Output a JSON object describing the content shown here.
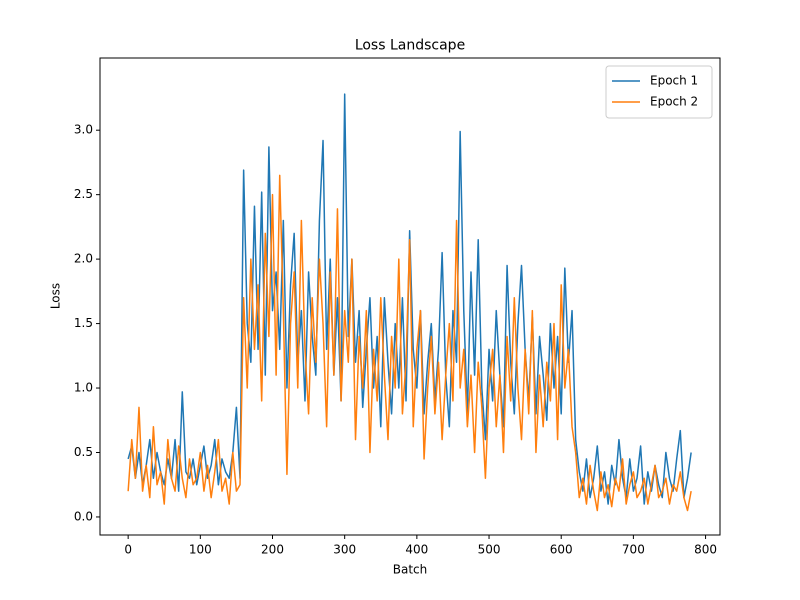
{
  "chart_data": {
    "type": "line",
    "title": "Loss Landscape",
    "x_label": "Batch",
    "y_label": "Loss",
    "x": [
      0,
      5,
      10,
      15,
      20,
      25,
      30,
      35,
      40,
      45,
      50,
      55,
      60,
      65,
      70,
      75,
      80,
      85,
      90,
      95,
      100,
      105,
      110,
      115,
      120,
      125,
      130,
      135,
      140,
      145,
      150,
      155,
      160,
      165,
      170,
      175,
      180,
      185,
      190,
      195,
      200,
      205,
      210,
      215,
      220,
      225,
      230,
      235,
      240,
      245,
      250,
      255,
      260,
      265,
      270,
      275,
      280,
      285,
      290,
      295,
      300,
      305,
      310,
      315,
      320,
      325,
      330,
      335,
      340,
      345,
      350,
      355,
      360,
      365,
      370,
      375,
      380,
      385,
      390,
      395,
      400,
      405,
      410,
      415,
      420,
      425,
      430,
      435,
      440,
      445,
      450,
      455,
      460,
      465,
      470,
      475,
      480,
      485,
      490,
      495,
      500,
      505,
      510,
      515,
      520,
      525,
      530,
      535,
      540,
      545,
      550,
      555,
      560,
      565,
      570,
      575,
      580,
      585,
      590,
      595,
      600,
      605,
      610,
      615,
      620,
      625,
      630,
      635,
      640,
      645,
      650,
      655,
      660,
      665,
      670,
      675,
      680,
      685,
      690,
      695,
      700,
      705,
      710,
      715,
      720,
      725,
      730,
      735,
      740,
      745,
      750,
      755,
      760,
      765,
      770,
      775,
      780
    ],
    "series": [
      {
        "name": "Epoch 1",
        "color": "#1f77b4",
        "values": [
          0.45,
          0.55,
          0.3,
          0.5,
          0.25,
          0.4,
          0.6,
          0.3,
          0.5,
          0.35,
          0.25,
          0.45,
          0.3,
          0.6,
          0.2,
          0.97,
          0.35,
          0.3,
          0.45,
          0.25,
          0.4,
          0.55,
          0.3,
          0.4,
          0.6,
          0.25,
          0.45,
          0.35,
          0.3,
          0.5,
          0.85,
          0.3,
          2.69,
          1.5,
          1.2,
          2.41,
          1.3,
          2.52,
          1.1,
          2.87,
          1.6,
          1.9,
          1.3,
          2.3,
          1.0,
          1.8,
          2.2,
          1.2,
          1.6,
          0.9,
          1.9,
          1.4,
          1.1,
          2.3,
          2.92,
          1.3,
          2.0,
          1.1,
          1.7,
          0.9,
          3.28,
          1.4,
          2.0,
          1.2,
          1.6,
          0.85,
          1.3,
          1.7,
          1.0,
          1.4,
          0.7,
          1.7,
          1.2,
          0.8,
          1.5,
          1.0,
          1.7,
          0.9,
          2.22,
          1.3,
          1.0,
          1.6,
          0.8,
          1.2,
          1.5,
          0.9,
          1.3,
          2.05,
          1.1,
          0.7,
          1.6,
          1.2,
          2.99,
          1.6,
          0.8,
          1.9,
          1.1,
          2.15,
          1.0,
          0.6,
          1.3,
          0.9,
          1.6,
          1.1,
          0.7,
          1.95,
          1.2,
          0.8,
          1.5,
          1.95,
          1.3,
          0.9,
          1.55,
          0.8,
          1.4,
          1.1,
          0.75,
          1.5,
          1.0,
          1.4,
          0.8,
          1.93,
          1.2,
          1.6,
          0.6,
          0.35,
          0.2,
          0.45,
          0.15,
          0.3,
          0.55,
          0.2,
          0.35,
          0.1,
          0.4,
          0.25,
          0.6,
          0.3,
          0.15,
          0.45,
          0.2,
          0.3,
          0.55,
          0.1,
          0.35,
          0.2,
          0.4,
          0.25,
          0.15,
          0.5,
          0.3,
          0.2,
          0.45,
          0.67,
          0.15,
          0.3,
          0.5
        ]
      },
      {
        "name": "Epoch 2",
        "color": "#ff7f0e",
        "values": [
          0.2,
          0.6,
          0.3,
          0.85,
          0.2,
          0.4,
          0.15,
          0.7,
          0.25,
          0.35,
          0.1,
          0.6,
          0.3,
          0.2,
          0.55,
          0.3,
          0.15,
          0.45,
          0.25,
          0.3,
          0.5,
          0.2,
          0.4,
          0.15,
          0.35,
          0.6,
          0.2,
          0.3,
          0.1,
          0.5,
          0.2,
          0.25,
          1.7,
          1.0,
          2.0,
          1.3,
          1.8,
          0.9,
          2.2,
          1.4,
          2.5,
          1.1,
          2.65,
          1.6,
          0.33,
          1.5,
          1.9,
          1.0,
          2.3,
          1.3,
          0.8,
          1.7,
          1.2,
          2.0,
          1.5,
          0.7,
          1.9,
          1.1,
          2.39,
          0.9,
          1.6,
          1.2,
          2.0,
          0.6,
          1.4,
          1.0,
          1.6,
          0.5,
          1.3,
          0.9,
          1.7,
          1.1,
          0.6,
          1.4,
          1.0,
          2.0,
          0.8,
          1.2,
          2.15,
          0.7,
          1.3,
          1.6,
          0.45,
          1.0,
          1.4,
          0.8,
          1.2,
          0.6,
          1.1,
          1.5,
          0.9,
          2.3,
          1.0,
          1.3,
          0.7,
          1.1,
          0.5,
          1.2,
          0.85,
          0.3,
          1.0,
          1.3,
          0.7,
          1.1,
          0.5,
          1.4,
          0.9,
          1.7,
          1.0,
          0.6,
          1.3,
          0.8,
          1.6,
          0.5,
          1.1,
          0.7,
          1.2,
          0.9,
          1.5,
          0.6,
          1.8,
          1.0,
          1.3,
          0.7,
          0.5,
          0.15,
          0.3,
          0.1,
          0.4,
          0.2,
          0.05,
          0.35,
          0.15,
          0.25,
          0.08,
          0.3,
          0.2,
          0.45,
          0.1,
          0.25,
          0.35,
          0.15,
          0.2,
          0.3,
          0.1,
          0.25,
          0.4,
          0.15,
          0.2,
          0.3,
          0.1,
          0.25,
          0.2,
          0.35,
          0.15,
          0.05,
          0.2
        ]
      }
    ],
    "xlim": [
      -39,
      820
    ],
    "xticks": [
      0,
      100,
      200,
      300,
      400,
      500,
      600,
      700,
      800
    ],
    "ylim": [
      -0.14,
      3.56
    ],
    "yticks": [
      {
        "value": 0,
        "label": "0.0"
      },
      0.5,
      {
        "value": 1,
        "label": "1.0"
      },
      1.5,
      {
        "value": 2,
        "label": "2.0"
      },
      2.5,
      {
        "value": 3,
        "label": "3.0"
      }
    ],
    "legend": "upper right",
    "grid": false
  }
}
